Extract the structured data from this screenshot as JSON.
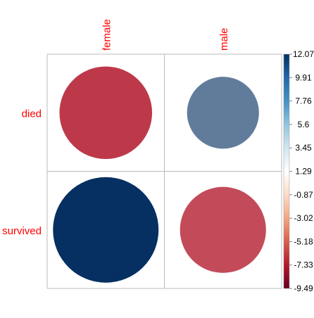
{
  "chart_data": {
    "type": "heatmap",
    "style": "corrplot-circle",
    "columns": [
      "female",
      "male"
    ],
    "rows": [
      "died",
      "survived"
    ],
    "values": [
      [
        -9.3,
        5.6
      ],
      [
        12.07,
        -8.0
      ]
    ],
    "color_scale": {
      "min": -9.49,
      "max": 12.07,
      "ticks": [
        "12.07",
        "9.91",
        "7.76",
        "5.6",
        "3.45",
        "1.29",
        "-0.87",
        "-3.02",
        "-5.18",
        "-7.33",
        "-9.49"
      ],
      "negative_color": "#B2182B",
      "neutral_color": "#FFFFFF",
      "positive_color": "#053061"
    },
    "label_color": "#FF0000",
    "grid": true,
    "legend_position": "right"
  }
}
